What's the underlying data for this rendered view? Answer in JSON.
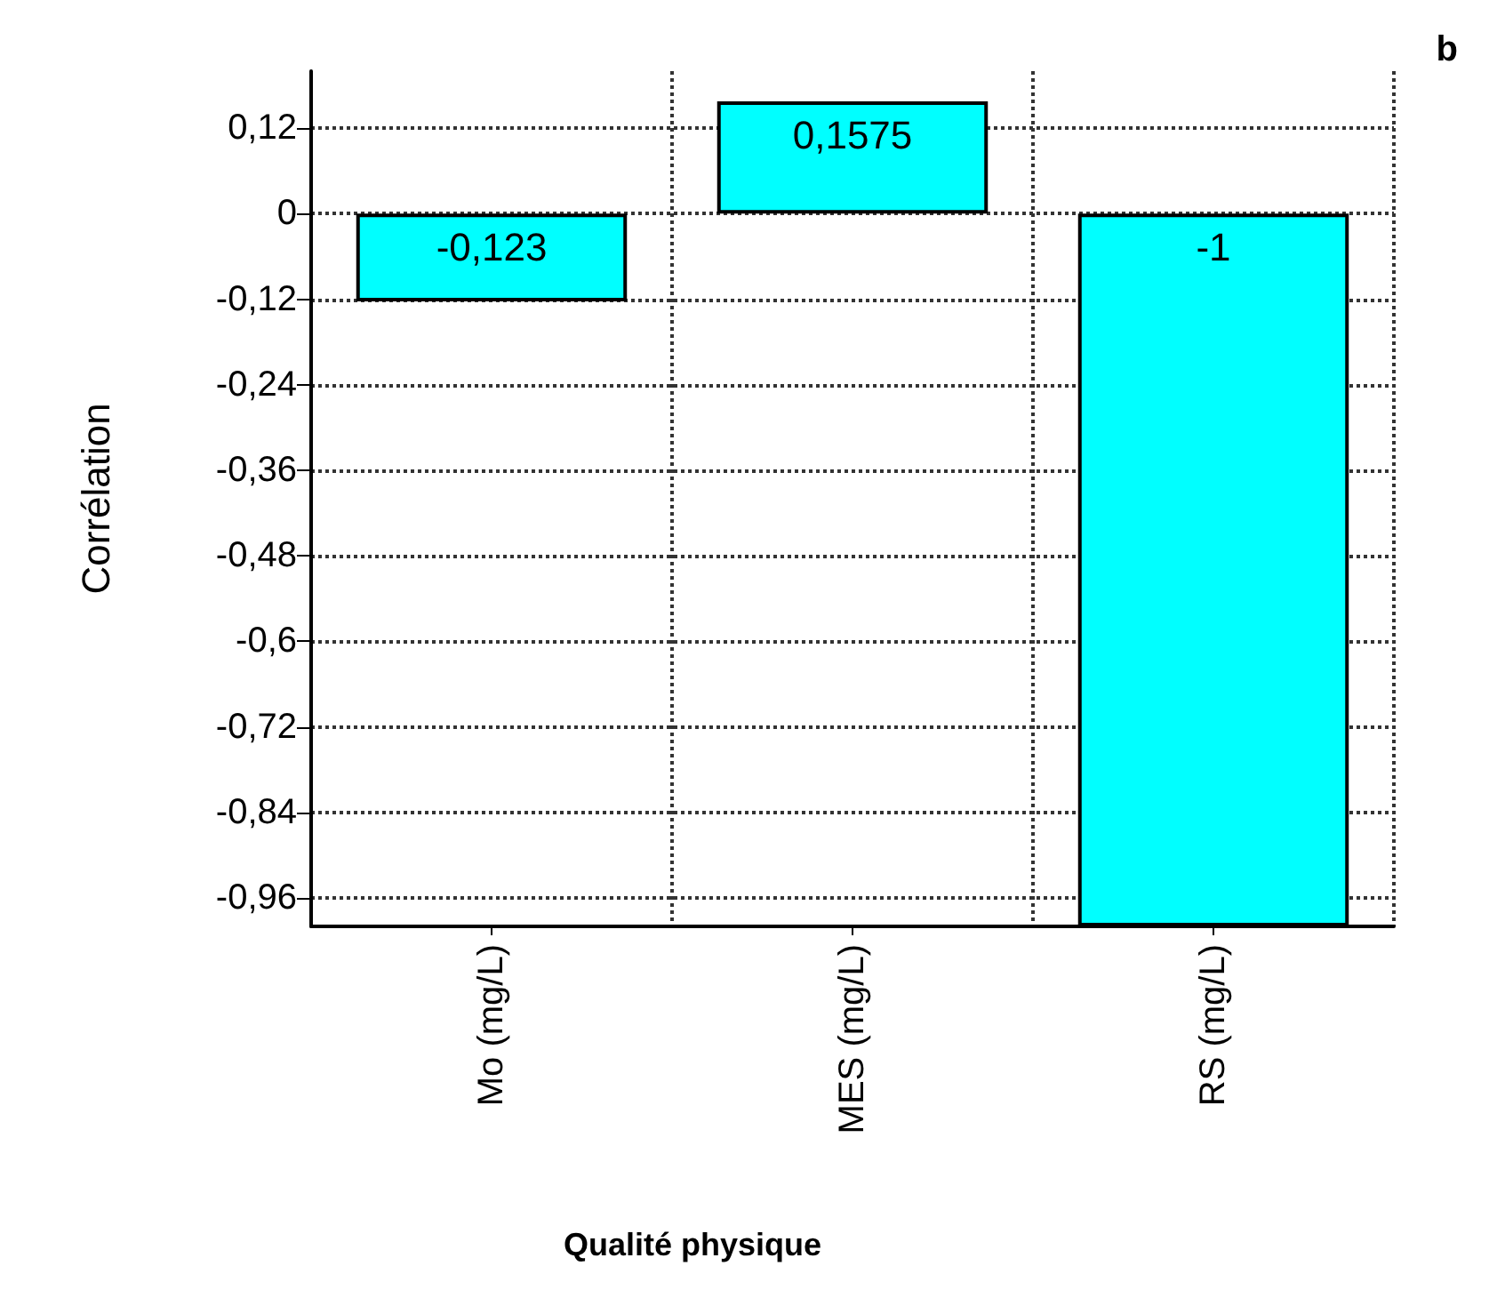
{
  "chart_data": {
    "type": "bar",
    "ylabel": "Corrélation",
    "xlabel": "Qualité physique",
    "annotations": [
      "b"
    ],
    "categories": [
      "Mo (mg/L)",
      "MES (mg/L)",
      "RS (mg/L)"
    ],
    "values": [
      -0.123,
      0.1575,
      -1
    ],
    "color": "#00ffff",
    "value_labels": [
      "-0,123",
      "0,1575",
      "-1"
    ],
    "ylim": [
      -1,
      0.2
    ],
    "yticks": [
      {
        "value": 0.12,
        "label": "0,12"
      },
      0,
      {
        "value": -0.12,
        "label": "-0,12"
      },
      {
        "value": -0.24,
        "label": "-0,24"
      },
      {
        "value": -0.36,
        "label": "-0,36"
      },
      {
        "value": -0.48,
        "label": "-0,48"
      },
      {
        "value": -0.6,
        "label": "-0,6"
      },
      {
        "value": -0.72,
        "label": "-0,72"
      },
      {
        "value": -0.84,
        "label": "-0,84"
      },
      {
        "value": -0.96,
        "label": "-0,96"
      }
    ],
    "grid": true
  }
}
